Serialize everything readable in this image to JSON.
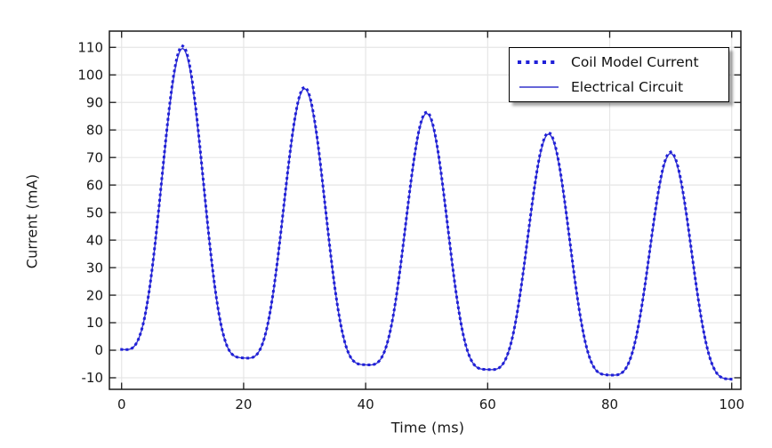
{
  "chart_data": {
    "type": "line",
    "title": "",
    "xlabel": "Time (ms)",
    "ylabel": "Current (mA)",
    "xlim": [
      -2,
      101.5
    ],
    "ylim": [
      -14.2,
      115.9
    ],
    "xticks": [
      0,
      20,
      40,
      60,
      80,
      100
    ],
    "yticks": [
      -10,
      0,
      10,
      20,
      30,
      40,
      50,
      60,
      70,
      80,
      90,
      100,
      110
    ],
    "grid": true,
    "legend_position": "top-right",
    "period_ms": 20,
    "pulse_shape_exponent": 3.8,
    "sample_step_ms": 0.25,
    "x_peaks": [
      10,
      30,
      50,
      70,
      90
    ],
    "x_troughs": [
      0,
      20,
      40,
      60,
      80,
      100
    ],
    "series": [
      {
        "name": "Coil Model Current",
        "style": "dotted",
        "color": "#2020d8",
        "peak_values": [
          110.5,
          95.5,
          86.5,
          79.0,
          72.0
        ],
        "trough_values": [
          0.3,
          -2.8,
          -5.3,
          -7.0,
          -9.0,
          -10.5
        ]
      },
      {
        "name": "Electrical Circuit",
        "style": "solid",
        "color": "#3434cc",
        "peak_values": [
          109.6,
          95.0,
          86.0,
          78.5,
          71.5
        ],
        "trough_values": [
          0.3,
          -2.8,
          -5.3,
          -7.0,
          -9.0,
          -10.5
        ]
      }
    ],
    "colors": {
      "grid": "#e6e6e6",
      "frame": "#1a1a1a",
      "tick": "#1a1a1a",
      "text": "#1a1a1a",
      "background": "#ffffff"
    }
  }
}
